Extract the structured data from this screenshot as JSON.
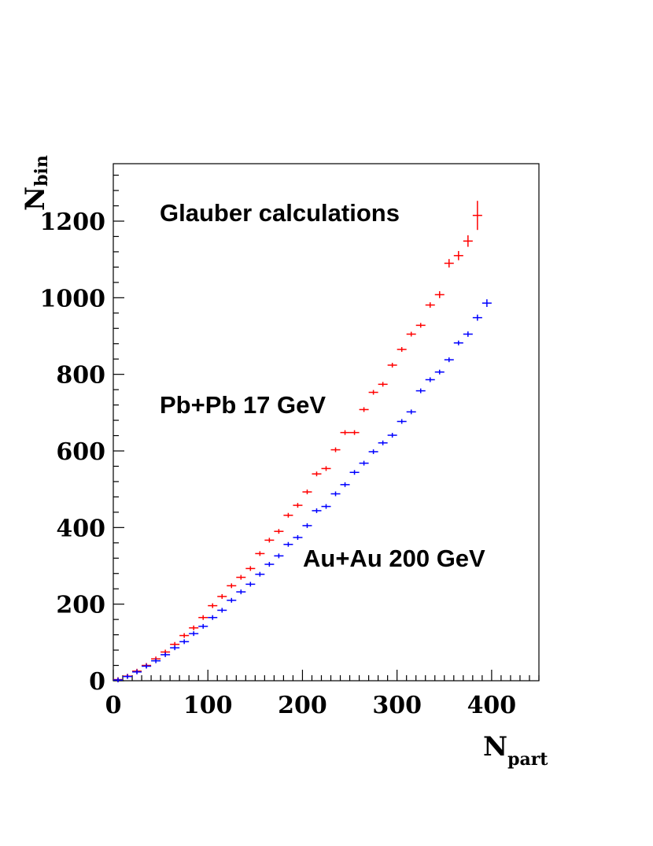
{
  "chart_data": {
    "type": "scatter",
    "xlabel": {
      "main": "N",
      "sub": "part"
    },
    "ylabel": {
      "main": "N",
      "sub": "bin"
    },
    "xlim": [
      0,
      450
    ],
    "ylim": [
      0,
      1350
    ],
    "x_ticks": [
      0,
      100,
      200,
      300,
      400
    ],
    "y_ticks": [
      0,
      200,
      400,
      600,
      800,
      1000,
      1200
    ],
    "grid": false,
    "legend": "none",
    "annotations": [
      {
        "text": "Glauber calculations",
        "key": "glauber"
      },
      {
        "text": "Pb+Pb 17 GeV",
        "key": "pbpb"
      },
      {
        "text": "Au+Au 200 GeV",
        "key": "auau"
      }
    ],
    "series": [
      {
        "color": "#ff0000",
        "points": [
          [
            5,
            3
          ],
          [
            15,
            12
          ],
          [
            25,
            25
          ],
          [
            35,
            40
          ],
          [
            45,
            57
          ],
          [
            55,
            75
          ],
          [
            65,
            95
          ],
          [
            75,
            118
          ],
          [
            85,
            138
          ],
          [
            95,
            165
          ],
          [
            105,
            196
          ],
          [
            115,
            220
          ],
          [
            125,
            248
          ],
          [
            135,
            270
          ],
          [
            145,
            293
          ],
          [
            155,
            332
          ],
          [
            165,
            367
          ],
          [
            175,
            390
          ],
          [
            185,
            432
          ],
          [
            195,
            458
          ],
          [
            205,
            493
          ],
          [
            215,
            540
          ],
          [
            225,
            554
          ],
          [
            235,
            603
          ],
          [
            245,
            648
          ],
          [
            255,
            648
          ],
          [
            265,
            708
          ],
          [
            275,
            753
          ],
          [
            285,
            774
          ],
          [
            295,
            824
          ],
          [
            305,
            865
          ],
          [
            315,
            905
          ],
          [
            325,
            928
          ],
          [
            335,
            981
          ],
          [
            345,
            1008
          ],
          [
            355,
            1090
          ],
          [
            365,
            1110
          ],
          [
            375,
            1148
          ],
          [
            385,
            1215
          ]
        ],
        "yerr": [
          1,
          1,
          1,
          1,
          1,
          1,
          1,
          1,
          1,
          1,
          1,
          1,
          1,
          1,
          1,
          1,
          1,
          1,
          1,
          1,
          2,
          2,
          2,
          2,
          3,
          3,
          3,
          3,
          4,
          4,
          5,
          5,
          6,
          7,
          9,
          11,
          12,
          15,
          38
        ]
      },
      {
        "color": "#0000ff",
        "points": [
          [
            5,
            2
          ],
          [
            15,
            11
          ],
          [
            25,
            23
          ],
          [
            35,
            38
          ],
          [
            45,
            52
          ],
          [
            55,
            68
          ],
          [
            65,
            86
          ],
          [
            75,
            102
          ],
          [
            85,
            123
          ],
          [
            95,
            142
          ],
          [
            105,
            165
          ],
          [
            115,
            184
          ],
          [
            125,
            210
          ],
          [
            135,
            232
          ],
          [
            145,
            252
          ],
          [
            155,
            278
          ],
          [
            165,
            304
          ],
          [
            175,
            326
          ],
          [
            185,
            356
          ],
          [
            195,
            374
          ],
          [
            205,
            405
          ],
          [
            215,
            444
          ],
          [
            225,
            455
          ],
          [
            235,
            488
          ],
          [
            245,
            512
          ],
          [
            255,
            544
          ],
          [
            265,
            568
          ],
          [
            275,
            598
          ],
          [
            285,
            621
          ],
          [
            295,
            641
          ],
          [
            305,
            677
          ],
          [
            315,
            702
          ],
          [
            325,
            757
          ],
          [
            335,
            786
          ],
          [
            345,
            806
          ],
          [
            355,
            838
          ],
          [
            365,
            882
          ],
          [
            375,
            905
          ],
          [
            385,
            948
          ],
          [
            395,
            986
          ]
        ],
        "yerr": [
          1,
          1,
          1,
          1,
          1,
          1,
          1,
          1,
          1,
          1,
          1,
          1,
          1,
          1,
          1,
          1,
          1,
          1,
          1,
          1,
          1,
          1,
          1,
          1,
          2,
          2,
          2,
          2,
          2,
          3,
          3,
          3,
          4,
          4,
          5,
          5,
          6,
          7,
          8,
          10
        ]
      }
    ]
  }
}
